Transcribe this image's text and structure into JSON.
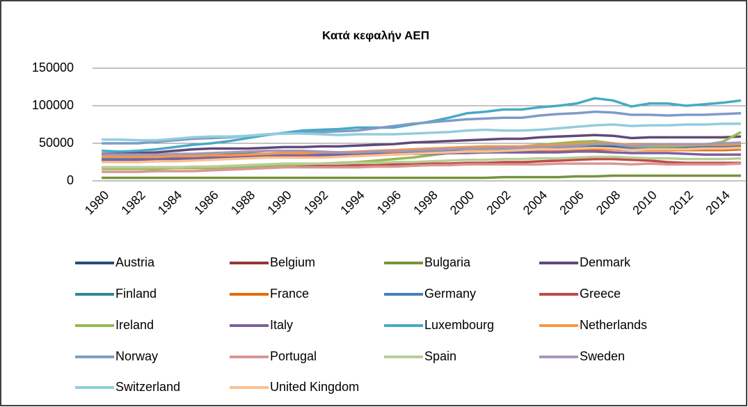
{
  "chart_data": {
    "type": "line",
    "title": "Κατά κεφαλήν ΑΕΠ",
    "categories": [
      "1980",
      null,
      "1982",
      null,
      "1984",
      null,
      "1986",
      null,
      "1988",
      null,
      "1990",
      null,
      "1992",
      null,
      "1994",
      null,
      "1996",
      null,
      "1998",
      null,
      "2000",
      null,
      "2002",
      null,
      "2004",
      null,
      "2006",
      null,
      "2008",
      null,
      "2010",
      null,
      "2012",
      null,
      "2014",
      null
    ],
    "ylim": [
      0,
      150000
    ],
    "yticks": [
      0,
      50000,
      100000,
      150000
    ],
    "grid": true,
    "legend": "bottom",
    "series": [
      {
        "name": "Austria",
        "color": "#254d7a",
        "values": [
          28000,
          29000,
          29000,
          30000,
          31000,
          31000,
          32000,
          33000,
          34000,
          35000,
          36000,
          36000,
          37000,
          37000,
          38000,
          38000,
          39000,
          40000,
          40000,
          41000,
          42000,
          43000,
          43000,
          44000,
          45000,
          45000,
          46000,
          47000,
          47000,
          45000,
          46000,
          46000,
          46000,
          46000,
          46000,
          47000
        ]
      },
      {
        "name": "Belgium",
        "color": "#953735",
        "values": [
          28000,
          28000,
          28000,
          29000,
          30000,
          30000,
          31000,
          31000,
          32000,
          33000,
          34000,
          34000,
          35000,
          35000,
          36000,
          36000,
          36000,
          37000,
          37000,
          38000,
          38000,
          39000,
          39000,
          40000,
          40000,
          41000,
          41000,
          42000,
          42000,
          41000,
          41000,
          41000,
          41000,
          41000,
          41000,
          42000
        ]
      },
      {
        "name": "Bulgaria",
        "color": "#77933c",
        "values": [
          4000,
          4000,
          4000,
          4000,
          4000,
          4000,
          4000,
          4000,
          4000,
          4000,
          4000,
          4000,
          4000,
          4000,
          4000,
          4000,
          4000,
          4000,
          4000,
          4000,
          4000,
          4000,
          5000,
          5000,
          5000,
          5000,
          6000,
          6000,
          7000,
          7000,
          7000,
          7000,
          7000,
          7000,
          7000,
          7000
        ]
      },
      {
        "name": "Denmark",
        "color": "#5f497a",
        "values": [
          36000,
          36000,
          37000,
          38000,
          40000,
          42000,
          43000,
          43000,
          43000,
          44000,
          45000,
          45000,
          46000,
          46000,
          47000,
          48000,
          49000,
          51000,
          52000,
          53000,
          54000,
          55000,
          56000,
          56000,
          58000,
          59000,
          60000,
          61000,
          60000,
          57000,
          58000,
          58000,
          58000,
          58000,
          58000,
          59000
        ]
      },
      {
        "name": "Finland",
        "color": "#31859c",
        "values": [
          30000,
          30000,
          31000,
          32000,
          33000,
          34000,
          35000,
          36000,
          38000,
          40000,
          40000,
          38000,
          36000,
          35000,
          35000,
          36000,
          37000,
          38000,
          39000,
          40000,
          42000,
          42000,
          43000,
          43000,
          44000,
          45000,
          46000,
          48000,
          48000,
          45000,
          45000,
          46000,
          45000,
          45000,
          45000,
          46000
        ]
      },
      {
        "name": "France",
        "color": "#e46c0a",
        "values": [
          28000,
          28000,
          29000,
          29000,
          30000,
          30000,
          31000,
          32000,
          33000,
          33000,
          34000,
          34000,
          34000,
          34000,
          35000,
          35000,
          36000,
          36000,
          37000,
          37000,
          38000,
          38000,
          39000,
          39000,
          40000,
          40000,
          41000,
          42000,
          42000,
          41000,
          41000,
          41000,
          41000,
          41000,
          41000,
          42000
        ]
      },
      {
        "name": "Germany",
        "color": "#4a7ebb",
        "values": [
          30000,
          30000,
          30000,
          31000,
          32000,
          32000,
          33000,
          34000,
          35000,
          35000,
          36000,
          37000,
          37000,
          37000,
          38000,
          38000,
          39000,
          39000,
          40000,
          40000,
          41000,
          41000,
          41000,
          41000,
          42000,
          42000,
          43000,
          44000,
          44000,
          42000,
          43000,
          44000,
          44000,
          44000,
          45000,
          46000
        ]
      },
      {
        "name": "Greece",
        "color": "#be4b48",
        "values": [
          18000,
          18000,
          18000,
          18000,
          18000,
          18000,
          19000,
          19000,
          19000,
          20000,
          20000,
          20000,
          20000,
          20000,
          21000,
          21000,
          22000,
          22000,
          23000,
          23000,
          24000,
          24000,
          25000,
          25000,
          26000,
          27000,
          28000,
          29000,
          29000,
          28000,
          27000,
          25000,
          24000,
          24000,
          24000,
          24000
        ]
      },
      {
        "name": "Ireland",
        "color": "#98b954",
        "values": [
          16000,
          16000,
          16000,
          16000,
          17000,
          17000,
          17000,
          18000,
          19000,
          20000,
          21000,
          22000,
          23000,
          24000,
          25000,
          27000,
          29000,
          31000,
          34000,
          37000,
          40000,
          42000,
          44000,
          46000,
          48000,
          50000,
          52000,
          53000,
          50000,
          46000,
          46000,
          46000,
          47000,
          48000,
          52000,
          65000
        ]
      },
      {
        "name": "Italy",
        "color": "#7d60a0",
        "values": [
          27000,
          27000,
          28000,
          28000,
          29000,
          29000,
          30000,
          31000,
          32000,
          32000,
          33000,
          33000,
          34000,
          34000,
          34000,
          35000,
          35000,
          36000,
          36000,
          37000,
          37000,
          38000,
          38000,
          38000,
          38000,
          38000,
          39000,
          39000,
          38000,
          37000,
          37000,
          37000,
          36000,
          35000,
          35000,
          35000
        ]
      },
      {
        "name": "Luxembourg",
        "color": "#46aac5",
        "values": [
          40000,
          39000,
          40000,
          42000,
          45000,
          48000,
          50000,
          53000,
          57000,
          61000,
          64000,
          67000,
          68000,
          69000,
          71000,
          71000,
          71000,
          75000,
          79000,
          84000,
          90000,
          92000,
          95000,
          95000,
          98000,
          100000,
          103000,
          110000,
          107000,
          99000,
          103000,
          103000,
          100000,
          102000,
          104000,
          107000
        ]
      },
      {
        "name": "Netherlands",
        "color": "#f79646",
        "values": [
          32000,
          32000,
          32000,
          32000,
          33000,
          33000,
          34000,
          34000,
          35000,
          36000,
          37000,
          37000,
          38000,
          38000,
          39000,
          40000,
          41000,
          42000,
          43000,
          44000,
          45000,
          46000,
          46000,
          46000,
          47000,
          48000,
          49000,
          50000,
          50000,
          48000,
          48000,
          48000,
          48000,
          48000,
          48000,
          49000
        ]
      },
      {
        "name": "Norway",
        "color": "#7e9bc8",
        "values": [
          50000,
          50000,
          50000,
          52000,
          54000,
          56000,
          57000,
          58000,
          60000,
          62000,
          63000,
          64000,
          65000,
          66000,
          67000,
          70000,
          73000,
          76000,
          78000,
          80000,
          82000,
          83000,
          84000,
          84000,
          87000,
          89000,
          90000,
          92000,
          91000,
          88000,
          88000,
          87000,
          88000,
          88000,
          89000,
          90000
        ]
      },
      {
        "name": "Portugal",
        "color": "#d99694",
        "values": [
          12000,
          12000,
          12000,
          13000,
          13000,
          13000,
          14000,
          15000,
          16000,
          17000,
          18000,
          18000,
          18000,
          18000,
          18000,
          19000,
          19000,
          20000,
          21000,
          21000,
          22000,
          22000,
          22000,
          22000,
          22000,
          23000,
          23000,
          23000,
          23000,
          22000,
          23000,
          22000,
          22000,
          22000,
          22000,
          23000
        ]
      },
      {
        "name": "Spain",
        "color": "#b9cd96",
        "values": [
          18000,
          18000,
          18000,
          18000,
          18000,
          19000,
          19000,
          20000,
          21000,
          22000,
          23000,
          23000,
          23000,
          23000,
          24000,
          24000,
          25000,
          25000,
          26000,
          27000,
          28000,
          28000,
          29000,
          29000,
          30000,
          30000,
          31000,
          32000,
          32000,
          31000,
          30000,
          30000,
          29000,
          29000,
          29000,
          30000
        ]
      },
      {
        "name": "Sweden",
        "color": "#a597b8",
        "values": [
          35000,
          35000,
          35000,
          35000,
          36000,
          36000,
          37000,
          38000,
          39000,
          40000,
          40000,
          40000,
          39000,
          38000,
          38000,
          39000,
          39000,
          40000,
          41000,
          42000,
          43000,
          43000,
          44000,
          44000,
          45000,
          46000,
          47000,
          49000,
          49000,
          46000,
          48000,
          49000,
          49000,
          49000,
          50000,
          51000
        ]
      },
      {
        "name": "Switzerland",
        "color": "#92cddc",
        "values": [
          55000,
          55000,
          54000,
          54000,
          56000,
          58000,
          59000,
          59000,
          60000,
          62000,
          63000,
          63000,
          62000,
          61000,
          62000,
          62000,
          62000,
          63000,
          64000,
          65000,
          67000,
          68000,
          67000,
          67000,
          68000,
          70000,
          72000,
          74000,
          75000,
          73000,
          74000,
          74000,
          75000,
          75000,
          76000,
          76000
        ]
      },
      {
        "name": "United Kingdom",
        "color": "#fac090",
        "values": [
          25000,
          25000,
          25000,
          26000,
          26000,
          27000,
          28000,
          29000,
          30000,
          31000,
          31000,
          31000,
          31000,
          32000,
          33000,
          34000,
          35000,
          36000,
          37000,
          38000,
          39000,
          39000,
          40000,
          41000,
          42000,
          42000,
          43000,
          44000,
          43000,
          41000,
          42000,
          42000,
          42000,
          43000,
          43000,
          44000
        ]
      }
    ]
  }
}
